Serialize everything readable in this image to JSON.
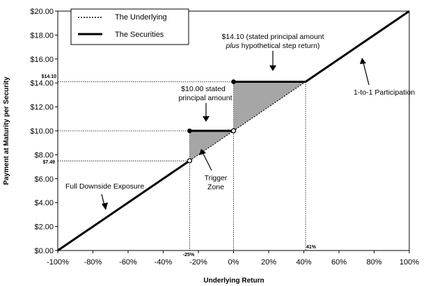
{
  "chart_data": {
    "type": "line",
    "xlabel": "Underlying Return",
    "ylabel": "Payment at Maturity per Security",
    "xlim": [
      -100,
      100
    ],
    "ylim": [
      0,
      20
    ],
    "x_ticks": [
      "-100%",
      "-80%",
      "-60%",
      "-40%",
      "-20%",
      "0%",
      "20%",
      "40%",
      "60%",
      "80%",
      "100%"
    ],
    "y_ticks": [
      "$0.00",
      "$2.00",
      "$4.00",
      "$6.00",
      "$8.00",
      "$10.00",
      "$12.00",
      "$14.00",
      "$16.00",
      "$18.00",
      "$20.00"
    ],
    "grid": false,
    "legend_position": "top-left",
    "series": [
      {
        "name": "The Underlying",
        "style": "dotted",
        "points": [
          [
            -25,
            7.5
          ],
          [
            41,
            14.1
          ]
        ]
      },
      {
        "name": "The Securities",
        "style": "thick-solid",
        "segments": [
          [
            [
              -100,
              0
            ],
            [
              -25,
              7.5
            ]
          ],
          [
            [
              -25,
              10
            ],
            [
              0,
              10
            ]
          ],
          [
            [
              0,
              14.1
            ],
            [
              41,
              14.1
            ],
            [
              100,
              20
            ]
          ]
        ]
      }
    ],
    "shaded_regions": [
      {
        "polygon": [
          [
            -25,
            7.5
          ],
          [
            -25,
            10
          ],
          [
            0,
            10
          ]
        ]
      },
      {
        "polygon": [
          [
            0,
            10
          ],
          [
            0,
            14.1
          ],
          [
            41,
            14.1
          ]
        ]
      }
    ],
    "markers": {
      "filled": [
        [
          -25,
          10
        ],
        [
          0,
          14.1
        ]
      ],
      "open": [
        [
          -25,
          7.5
        ],
        [
          0,
          10
        ]
      ]
    },
    "reference_lines": {
      "horizontal": [
        7.49,
        10,
        14.1
      ],
      "vertical": [
        -25,
        0,
        41
      ]
    },
    "special_labels": {
      "y_1410": "$14.10",
      "y_749": "$7.49",
      "x_neg25": "-25%",
      "x_41": "41%"
    },
    "annotations": {
      "step_line1": "$14.10 (stated principal amount",
      "step_line2_italic": "plus",
      "step_line2_rest": " hypothetical step return)",
      "principal_line1": "$10.00 stated",
      "principal_line2": "principal amount",
      "trigger_line1": "Trigger",
      "trigger_line2": "Zone",
      "participation": "1-to-1 Participation",
      "downside": "Full Downside Exposure"
    },
    "colors": {
      "line": "#000000",
      "shade": "#a6a6a6"
    }
  }
}
